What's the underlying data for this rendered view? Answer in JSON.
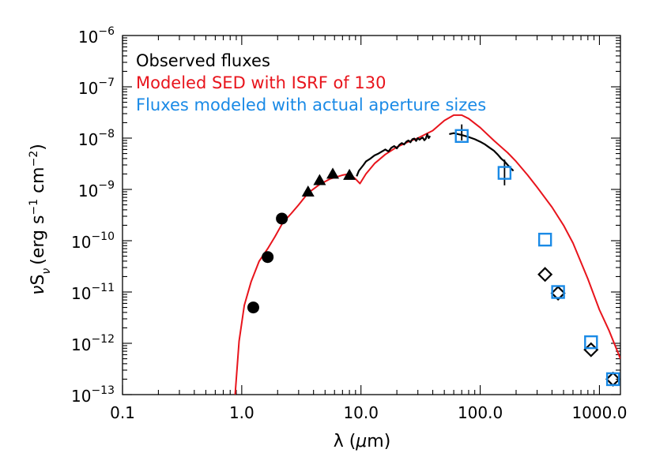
{
  "chart_data": {
    "type": "scatter",
    "title": "",
    "xlabel": "λ (μm)",
    "ylabel": "νS_ν (erg s⁻¹ cm⁻²)",
    "xscale": "log",
    "yscale": "log",
    "xlim": [
      0.1,
      1500
    ],
    "ylim": [
      1e-13,
      1e-06
    ],
    "x_ticks": [
      {
        "value": 0.1,
        "label": "0.1"
      },
      {
        "value": 1.0,
        "label": "1.0"
      },
      {
        "value": 10.0,
        "label": "10.0"
      },
      {
        "value": 100.0,
        "label": "100.0"
      },
      {
        "value": 1000.0,
        "label": "1000.0"
      }
    ],
    "y_ticks": [
      {
        "value": 1e-13,
        "base": "10",
        "exp": "−13"
      },
      {
        "value": 1e-12,
        "base": "10",
        "exp": "−12"
      },
      {
        "value": 1e-11,
        "base": "10",
        "exp": "−11"
      },
      {
        "value": 1e-10,
        "base": "10",
        "exp": "−10"
      },
      {
        "value": 1e-09,
        "base": "10",
        "exp": "−9"
      },
      {
        "value": 1e-08,
        "base": "10",
        "exp": "−8"
      },
      {
        "value": 1e-07,
        "base": "10",
        "exp": "−7"
      },
      {
        "value": 1e-06,
        "base": "10",
        "exp": "−6"
      }
    ],
    "grid": false,
    "legend_position": "top-left",
    "legend": [
      {
        "label": "Observed fluxes",
        "color": "#000000"
      },
      {
        "label": "Modeled SED with ISRF of 130",
        "color": "#e8141c"
      },
      {
        "label": "Fluxes modeled with actual aperture sizes",
        "color": "#1a8ae6"
      }
    ],
    "series": [
      {
        "role": "model",
        "kind": "line",
        "color": "#e8141c",
        "points": [
          [
            0.88,
            1e-13
          ],
          [
            0.95,
            1.1e-12
          ],
          [
            1.05,
            5.5e-12
          ],
          [
            1.2,
            1.6e-11
          ],
          [
            1.4,
            4e-11
          ],
          [
            1.65,
            7e-11
          ],
          [
            1.9,
            1.2e-10
          ],
          [
            2.2,
            2.2e-10
          ],
          [
            2.6,
            3.4e-10
          ],
          [
            3.0,
            5e-10
          ],
          [
            3.6,
            8.5e-10
          ],
          [
            4.5,
            1.25e-09
          ],
          [
            5.5,
            1.6e-09
          ],
          [
            7.0,
            1.9e-09
          ],
          [
            8.0,
            2e-09
          ],
          [
            9.0,
            1.6e-09
          ],
          [
            9.8,
            1.3e-09
          ],
          [
            11,
            2e-09
          ],
          [
            13,
            3.2e-09
          ],
          [
            16,
            4.8e-09
          ],
          [
            20,
            6.7e-09
          ],
          [
            25,
            8.5e-09
          ],
          [
            30,
            1e-08
          ],
          [
            40,
            1.4e-08
          ],
          [
            50,
            2.2e-08
          ],
          [
            60,
            2.8e-08
          ],
          [
            70,
            2.8e-08
          ],
          [
            80,
            2.4e-08
          ],
          [
            100,
            1.6e-08
          ],
          [
            130,
            9e-09
          ],
          [
            170,
            5.2e-09
          ],
          [
            200,
            3.5e-09
          ],
          [
            250,
            1.9e-09
          ],
          [
            300,
            1.1e-09
          ],
          [
            400,
            4.5e-10
          ],
          [
            500,
            2e-10
          ],
          [
            600,
            9e-11
          ],
          [
            800,
            1.8e-11
          ],
          [
            1000,
            4.5e-12
          ],
          [
            1200,
            1.8e-12
          ],
          [
            1500,
            5e-13
          ]
        ]
      },
      {
        "role": "observed-spectrum",
        "kind": "line",
        "color": "#000000",
        "points": [
          [
            9.2,
            1.8e-09
          ],
          [
            9.6,
            2.3e-09
          ],
          [
            10.5,
            3e-09
          ],
          [
            11,
            3.5e-09
          ],
          [
            12,
            4e-09
          ],
          [
            13,
            4.6e-09
          ],
          [
            14,
            5e-09
          ],
          [
            15,
            5.5e-09
          ],
          [
            16,
            6e-09
          ],
          [
            17,
            5.5e-09
          ],
          [
            18,
            6.5e-09
          ],
          [
            19,
            7e-09
          ],
          [
            20,
            6.3e-09
          ],
          [
            21,
            7.4e-09
          ],
          [
            22,
            8e-09
          ],
          [
            23,
            7.5e-09
          ],
          [
            24,
            8.5e-09
          ],
          [
            25,
            9e-09
          ],
          [
            26,
            8.3e-09
          ],
          [
            27,
            9.5e-09
          ],
          [
            28,
            9.8e-09
          ],
          [
            29,
            8.8e-09
          ],
          [
            30,
            1e-08
          ],
          [
            31,
            9.3e-09
          ],
          [
            32,
            9.9e-09
          ],
          [
            33,
            1.02e-08
          ],
          [
            34,
            9.1e-09
          ],
          [
            35,
            9.8e-09
          ],
          [
            36,
            1.2e-08
          ],
          [
            37,
            1e-08
          ],
          [
            38,
            1.1e-08
          ]
        ]
      },
      {
        "role": "observed-far-ir",
        "kind": "line",
        "color": "#000000",
        "points": [
          [
            55,
            1.2e-08
          ],
          [
            60,
            1.25e-08
          ],
          [
            65,
            1.2e-08
          ],
          [
            70,
            1.15e-08
          ],
          [
            80,
            1.05e-08
          ],
          [
            90,
            9.5e-09
          ],
          [
            100,
            8.5e-09
          ],
          [
            110,
            7.5e-09
          ],
          [
            120,
            6.5e-09
          ],
          [
            130,
            5.7e-09
          ],
          [
            140,
            4.8e-09
          ],
          [
            150,
            4e-09
          ],
          [
            160,
            3.5e-09
          ],
          [
            170,
            3e-09
          ],
          [
            180,
            2.6e-09
          ],
          [
            190,
            2.3e-09
          ]
        ]
      },
      {
        "role": "observed-photometry",
        "kind": "markers",
        "marker": "circle",
        "color": "#000000",
        "points": [
          [
            1.25,
            5e-12
          ],
          [
            1.65,
            4.8e-11
          ],
          [
            2.17,
            2.7e-10
          ]
        ]
      },
      {
        "role": "observed-photometry",
        "kind": "markers",
        "marker": "triangle",
        "color": "#000000",
        "points": [
          [
            3.6,
            9e-10
          ],
          [
            4.5,
            1.5e-09
          ],
          [
            5.8,
            2e-09
          ],
          [
            8.0,
            1.9e-09
          ]
        ]
      },
      {
        "role": "observed-photometry",
        "kind": "markers",
        "marker": "diamond",
        "color": "#000000",
        "points": [
          [
            350,
            2.2e-11
          ],
          [
            450,
            9.5e-12
          ],
          [
            850,
            7.5e-13
          ],
          [
            1300,
            2e-13
          ]
        ]
      },
      {
        "role": "aperture-model",
        "kind": "markers",
        "marker": "square",
        "color": "#1a8ae6",
        "points": [
          [
            70,
            1.1e-08
          ],
          [
            160,
            2.1e-09
          ],
          [
            350,
            1.05e-10
          ],
          [
            450,
            1e-11
          ],
          [
            850,
            1.05e-12
          ],
          [
            1300,
            2e-13
          ]
        ]
      }
    ],
    "error_bars": [
      {
        "x": 70,
        "y_low": 9e-09,
        "y_high": 1.85e-08
      },
      {
        "x": 160,
        "y_low": 1.2e-09,
        "y_high": 3.8e-09
      }
    ]
  }
}
